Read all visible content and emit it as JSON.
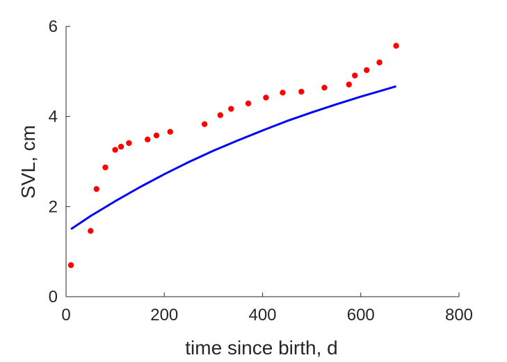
{
  "chart_data": {
    "type": "scatter",
    "title": "",
    "xlabel": "time since birth, d",
    "ylabel": "SVL, cm",
    "xlim": [
      0,
      800
    ],
    "ylim": [
      0,
      6
    ],
    "x_ticks": [
      0,
      200,
      400,
      600,
      800
    ],
    "y_ticks": [
      0,
      2,
      4,
      6
    ],
    "x_tick_labels": [
      "0",
      "200",
      "400",
      "600",
      "800"
    ],
    "y_tick_labels": [
      "0",
      "2",
      "4",
      "6"
    ],
    "grid": false,
    "legend": "none",
    "series": [
      {
        "kind": "scatter",
        "color": "#ff0000",
        "x": [
          10,
          50,
          62,
          80,
          100,
          112,
          128,
          166,
          184,
          212,
          282,
          314,
          336,
          371,
          407,
          441,
          479,
          526,
          576,
          588,
          612,
          638,
          672
        ],
        "y": [
          0.7,
          1.46,
          2.39,
          2.87,
          3.26,
          3.33,
          3.41,
          3.49,
          3.58,
          3.66,
          3.83,
          4.03,
          4.17,
          4.29,
          4.42,
          4.53,
          4.55,
          4.64,
          4.71,
          4.91,
          5.03,
          5.2,
          5.57
        ]
      },
      {
        "kind": "line",
        "color": "#0000ff",
        "x": [
          10,
          50,
          100,
          150,
          200,
          250,
          300,
          350,
          400,
          450,
          500,
          550,
          600,
          650,
          672
        ],
        "y": [
          1.5,
          1.79,
          2.12,
          2.43,
          2.72,
          2.99,
          3.24,
          3.47,
          3.69,
          3.9,
          4.09,
          4.27,
          4.44,
          4.6,
          4.67
        ]
      }
    ]
  }
}
